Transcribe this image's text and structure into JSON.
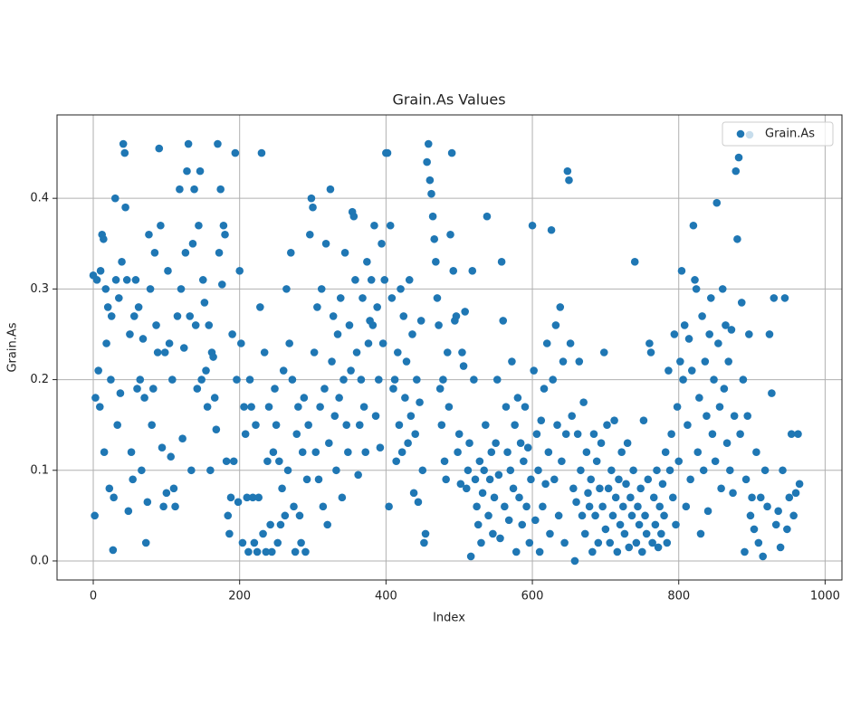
{
  "chart_data": {
    "type": "scatter",
    "title": "Grain.As Values",
    "x_label": "Index",
    "y_label": "Grain.As",
    "xlim": [
      -49.5,
      1023
    ],
    "ylim": [
      -0.021,
      0.492
    ],
    "xticks": [
      0,
      200,
      400,
      600,
      800,
      1000
    ],
    "yticks": [
      {
        "value": 0,
        "label": "0.0"
      },
      0.1,
      0.2,
      0.3,
      0.4
    ],
    "grid": true,
    "legend": "upper right",
    "x": [
      0,
      2,
      3,
      5,
      7,
      9,
      10,
      12,
      14,
      15,
      17,
      18,
      20,
      22,
      24,
      25,
      27,
      28,
      30,
      31,
      33,
      35,
      37,
      39,
      41,
      43,
      44,
      46,
      48,
      50,
      52,
      54,
      56,
      58,
      60,
      62,
      64,
      66,
      68,
      70,
      72,
      74,
      76,
      78,
      80,
      82,
      84,
      86,
      88,
      90,
      92,
      94,
      96,
      98,
      100,
      102,
      104,
      106,
      108,
      110,
      112,
      115,
      118,
      120,
      122,
      124,
      126,
      128,
      130,
      132,
      134,
      136,
      138,
      140,
      142,
      144,
      146,
      148,
      150,
      152,
      154,
      156,
      158,
      160,
      162,
      164,
      166,
      168,
      170,
      172,
      174,
      176,
      178,
      180,
      182,
      184,
      186,
      188,
      190,
      192,
      194,
      196,
      198,
      200,
      202,
      204,
      206,
      208,
      210,
      212,
      214,
      216,
      218,
      220,
      222,
      224,
      226,
      228,
      230,
      232,
      234,
      236,
      238,
      240,
      242,
      244,
      246,
      248,
      250,
      252,
      254,
      256,
      258,
      260,
      262,
      264,
      266,
      268,
      270,
      272,
      274,
      276,
      278,
      280,
      282,
      284,
      286,
      288,
      290,
      292,
      294,
      296,
      298,
      300,
      302,
      304,
      306,
      308,
      310,
      312,
      314,
      316,
      318,
      320,
      322,
      324,
      326,
      328,
      330,
      332,
      334,
      336,
      338,
      340,
      342,
      344,
      346,
      348,
      350,
      352,
      354,
      356,
      358,
      360,
      362,
      364,
      366,
      368,
      370,
      372,
      374,
      376,
      378,
      380,
      382,
      384,
      386,
      388,
      390,
      392,
      394,
      396,
      398,
      400,
      402,
      404,
      406,
      408,
      410,
      412,
      414,
      416,
      418,
      420,
      422,
      424,
      426,
      428,
      430,
      432,
      434,
      436,
      438,
      440,
      442,
      444,
      446,
      448,
      450,
      452,
      454,
      456,
      458,
      460,
      462,
      464,
      466,
      468,
      470,
      472,
      474,
      476,
      478,
      480,
      482,
      484,
      486,
      488,
      490,
      492,
      494,
      496,
      498,
      500,
      502,
      504,
      506,
      508,
      510,
      512,
      514,
      516,
      518,
      520,
      522,
      524,
      526,
      528,
      530,
      532,
      534,
      536,
      538,
      540,
      542,
      544,
      546,
      548,
      550,
      552,
      554,
      556,
      558,
      560,
      562,
      564,
      566,
      568,
      570,
      572,
      574,
      576,
      578,
      580,
      582,
      584,
      586,
      588,
      590,
      592,
      594,
      596,
      598,
      600,
      602,
      604,
      606,
      608,
      610,
      612,
      614,
      616,
      618,
      620,
      622,
      624,
      626,
      628,
      630,
      632,
      634,
      636,
      638,
      640,
      642,
      644,
      646,
      648,
      650,
      652,
      654,
      656,
      658,
      660,
      662,
      664,
      666,
      668,
      670,
      672,
      674,
      676,
      678,
      680,
      682,
      684,
      686,
      688,
      690,
      692,
      694,
      696,
      698,
      700,
      702,
      704,
      706,
      708,
      710,
      712,
      714,
      716,
      718,
      720,
      722,
      724,
      726,
      728,
      730,
      732,
      734,
      736,
      738,
      740,
      742,
      744,
      746,
      748,
      750,
      752,
      754,
      756,
      758,
      760,
      762,
      764,
      766,
      768,
      770,
      772,
      774,
      776,
      778,
      780,
      782,
      784,
      786,
      788,
      790,
      792,
      794,
      796,
      798,
      800,
      802,
      804,
      806,
      808,
      810,
      812,
      814,
      816,
      818,
      820,
      822,
      824,
      826,
      828,
      830,
      832,
      834,
      836,
      838,
      840,
      842,
      844,
      846,
      848,
      850,
      852,
      854,
      856,
      858,
      860,
      862,
      864,
      866,
      868,
      870,
      872,
      874,
      876,
      878,
      880,
      882,
      884,
      886,
      888,
      890,
      892,
      894,
      896,
      898,
      900,
      903,
      906,
      909,
      912,
      915,
      918,
      921,
      924,
      927,
      930,
      933,
      936,
      939,
      942,
      945,
      948,
      951,
      954,
      957,
      960,
      963,
      965
    ],
    "series": [
      {
        "name": "Grain.As",
        "color": "#1f77b4",
        "values": [
          0.315,
          0.05,
          0.18,
          0.31,
          0.21,
          0.17,
          0.32,
          0.36,
          0.355,
          0.12,
          0.3,
          0.24,
          0.28,
          0.08,
          0.2,
          0.27,
          0.012,
          0.07,
          0.4,
          0.31,
          0.15,
          0.29,
          0.185,
          0.33,
          0.46,
          0.45,
          0.39,
          0.31,
          0.055,
          0.25,
          0.12,
          0.09,
          0.27,
          0.31,
          0.19,
          0.28,
          0.2,
          0.1,
          0.245,
          0.18,
          0.02,
          0.065,
          0.36,
          0.3,
          0.15,
          0.19,
          0.34,
          0.26,
          0.23,
          0.455,
          0.37,
          0.125,
          0.06,
          0.23,
          0.075,
          0.32,
          0.24,
          0.115,
          0.2,
          0.08,
          0.06,
          0.27,
          0.41,
          0.3,
          0.135,
          0.235,
          0.34,
          0.43,
          0.46,
          0.27,
          0.1,
          0.35,
          0.41,
          0.26,
          0.19,
          0.37,
          0.43,
          0.2,
          0.31,
          0.285,
          0.21,
          0.17,
          0.26,
          0.1,
          0.23,
          0.225,
          0.18,
          0.145,
          0.46,
          0.34,
          0.41,
          0.305,
          0.37,
          0.36,
          0.11,
          0.05,
          0.03,
          0.07,
          0.25,
          0.11,
          0.45,
          0.2,
          0.065,
          0.32,
          0.24,
          0.02,
          0.17,
          0.14,
          0.07,
          0.01,
          0.2,
          0.17,
          0.07,
          0.02,
          0.15,
          0.01,
          0.07,
          0.28,
          0.45,
          0.03,
          0.23,
          0.01,
          0.11,
          0.17,
          0.04,
          0.01,
          0.12,
          0.19,
          0.15,
          0.02,
          0.11,
          0.04,
          0.08,
          0.21,
          0.05,
          0.3,
          0.1,
          0.24,
          0.34,
          0.2,
          0.06,
          0.01,
          0.14,
          0.17,
          0.05,
          0.02,
          0.12,
          0.18,
          0.01,
          0.09,
          0.15,
          0.36,
          0.4,
          0.39,
          0.23,
          0.12,
          0.28,
          0.09,
          0.17,
          0.3,
          0.06,
          0.19,
          0.35,
          0.04,
          0.13,
          0.41,
          0.22,
          0.27,
          0.16,
          0.1,
          0.25,
          0.18,
          0.29,
          0.07,
          0.2,
          0.34,
          0.15,
          0.12,
          0.26,
          0.21,
          0.385,
          0.38,
          0.31,
          0.23,
          0.095,
          0.15,
          0.2,
          0.29,
          0.17,
          0.12,
          0.33,
          0.24,
          0.265,
          0.31,
          0.26,
          0.37,
          0.16,
          0.28,
          0.2,
          0.125,
          0.35,
          0.24,
          0.31,
          0.45,
          0.45,
          0.06,
          0.37,
          0.29,
          0.19,
          0.2,
          0.11,
          0.23,
          0.15,
          0.3,
          0.12,
          0.27,
          0.18,
          0.22,
          0.13,
          0.31,
          0.16,
          0.25,
          0.075,
          0.14,
          0.2,
          0.065,
          0.175,
          0.265,
          0.1,
          0.02,
          0.03,
          0.44,
          0.46,
          0.42,
          0.405,
          0.38,
          0.355,
          0.33,
          0.29,
          0.26,
          0.19,
          0.15,
          0.2,
          0.11,
          0.09,
          0.23,
          0.17,
          0.36,
          0.45,
          0.32,
          0.265,
          0.27,
          0.12,
          0.14,
          0.085,
          0.23,
          0.215,
          0.275,
          0.08,
          0.1,
          0.13,
          0.005,
          0.32,
          0.2,
          0.09,
          0.06,
          0.04,
          0.11,
          0.02,
          0.075,
          0.1,
          0.15,
          0.38,
          0.05,
          0.09,
          0.12,
          0.03,
          0.07,
          0.13,
          0.2,
          0.095,
          0.025,
          0.33,
          0.265,
          0.06,
          0.17,
          0.12,
          0.045,
          0.1,
          0.22,
          0.08,
          0.15,
          0.01,
          0.18,
          0.07,
          0.13,
          0.04,
          0.11,
          0.17,
          0.06,
          0.125,
          0.02,
          0.09,
          0.37,
          0.21,
          0.045,
          0.14,
          0.1,
          0.01,
          0.155,
          0.06,
          0.19,
          0.085,
          0.24,
          0.12,
          0.03,
          0.365,
          0.2,
          0.09,
          0.26,
          0.15,
          0.05,
          0.28,
          0.11,
          0.22,
          0.02,
          0.14,
          0.43,
          0.42,
          0.24,
          0.16,
          0.08,
          0,
          0.065,
          0.14,
          0.22,
          0.1,
          0.05,
          0.175,
          0.03,
          0.12,
          0.075,
          0.06,
          0.09,
          0.01,
          0.14,
          0.05,
          0.11,
          0.02,
          0.08,
          0.13,
          0.06,
          0.23,
          0.035,
          0.15,
          0.08,
          0.02,
          0.1,
          0.05,
          0.155,
          0.07,
          0.01,
          0.09,
          0.04,
          0.12,
          0.06,
          0.03,
          0.085,
          0.13,
          0.015,
          0.07,
          0.05,
          0.1,
          0.33,
          0.02,
          0.06,
          0.04,
          0.08,
          0.01,
          0.155,
          0.05,
          0.03,
          0.09,
          0.24,
          0.23,
          0.02,
          0.07,
          0.04,
          0.1,
          0.015,
          0.06,
          0.03,
          0.085,
          0.05,
          0.12,
          0.02,
          0.21,
          0.1,
          0.14,
          0.07,
          0.25,
          0.04,
          0.17,
          0.11,
          0.22,
          0.32,
          0.2,
          0.26,
          0.06,
          0.15,
          0.245,
          0.09,
          0.21,
          0.37,
          0.31,
          0.3,
          0.12,
          0.18,
          0.03,
          0.27,
          0.1,
          0.22,
          0.16,
          0.055,
          0.25,
          0.29,
          0.14,
          0.2,
          0.11,
          0.395,
          0.24,
          0.17,
          0.08,
          0.3,
          0.19,
          0.26,
          0.13,
          0.22,
          0.1,
          0.255,
          0.075,
          0.16,
          0.43,
          0.355,
          0.445,
          0.14,
          0.285,
          0.2,
          0.01,
          0.09,
          0.16,
          0.25,
          0.05,
          0.07,
          0.035,
          0.12,
          0.02,
          0.07,
          0.005,
          0.1,
          0.06,
          0.25,
          0.185,
          0.29,
          0.04,
          0.055,
          0.015,
          0.1,
          0.29,
          0.035,
          0.07,
          0.14,
          0.05,
          0.075,
          0.14,
          0.085
        ]
      }
    ]
  }
}
